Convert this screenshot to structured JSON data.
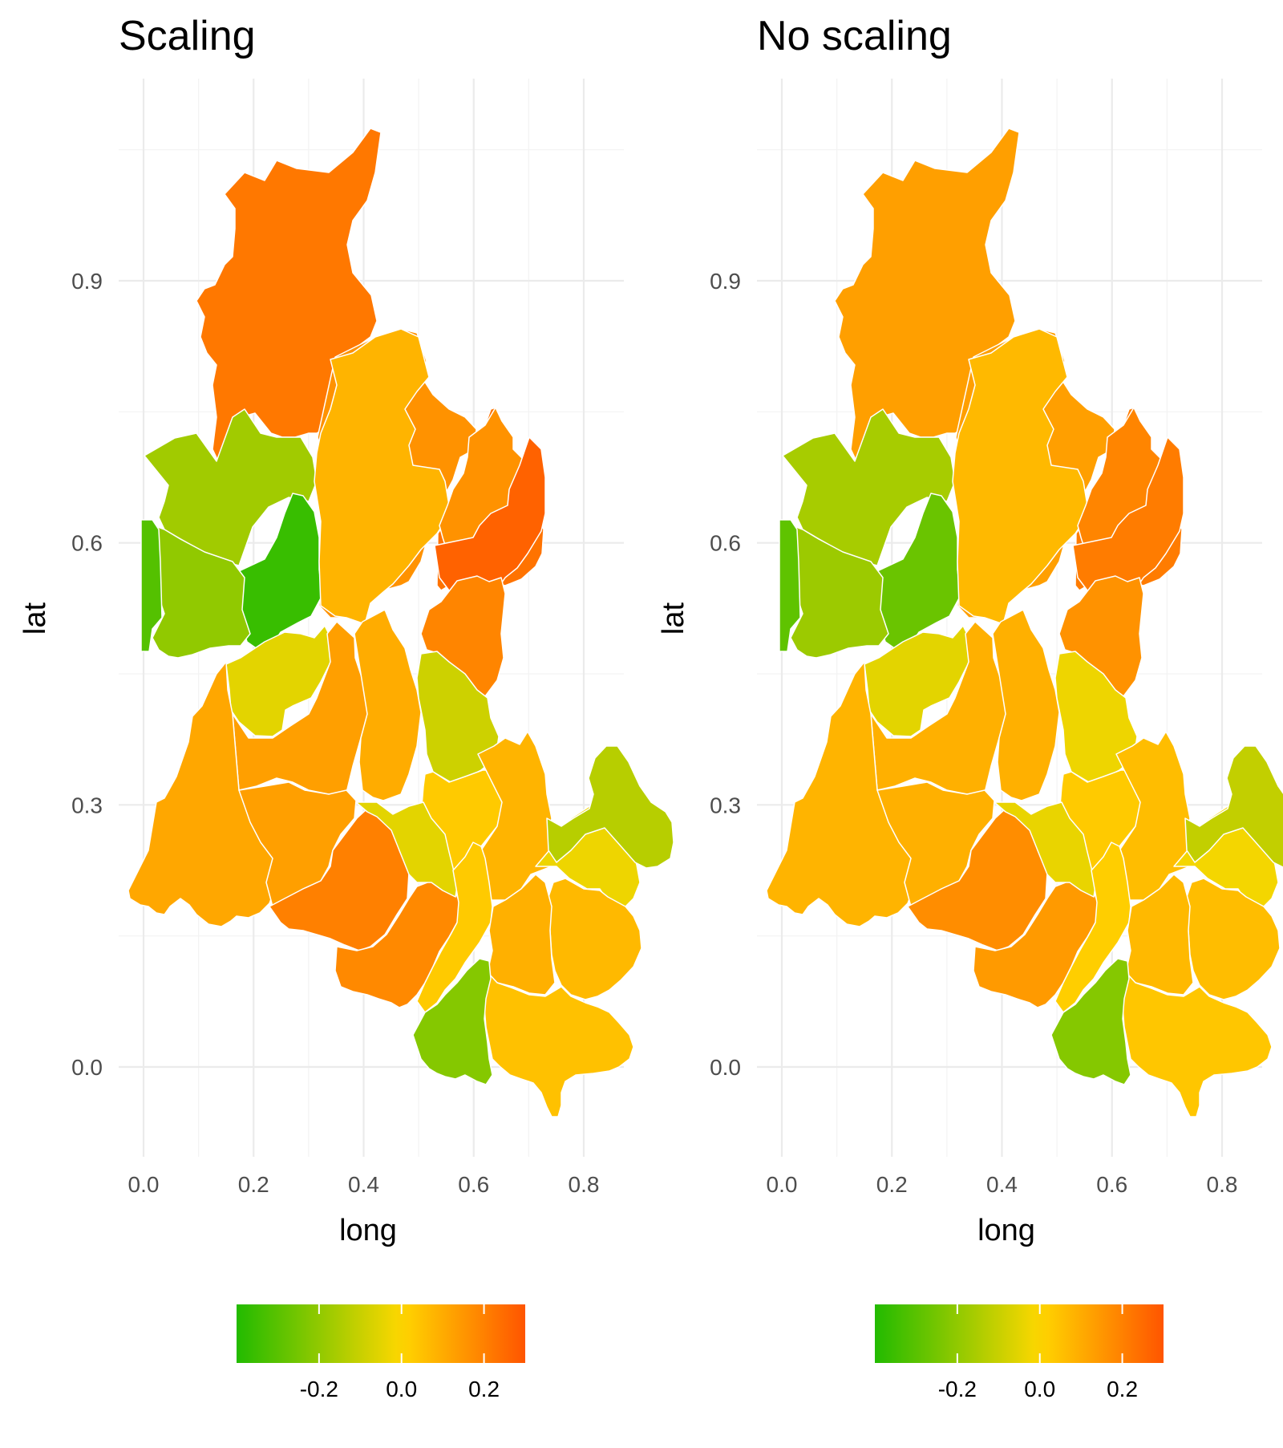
{
  "chart_data": [
    {
      "type": "heatmap",
      "title": "Scaling",
      "xlabel": "long",
      "ylabel": "lat",
      "xlim": [
        -0.02,
        0.87
      ],
      "ylim": [
        -0.105,
        1.15
      ],
      "x_ticks": [
        "0.0",
        "0.2",
        "0.4",
        "0.6",
        "0.8"
      ],
      "y_ticks": [
        "0.0",
        "0.3",
        "0.6",
        "0.9"
      ],
      "legend": {
        "position": "bottom",
        "range": [
          -0.4,
          0.3
        ],
        "ticks": [
          "-0.2",
          "0.0",
          "0.2"
        ],
        "colors": [
          "#22bb00",
          "#ffd700",
          "#ff5500"
        ]
      },
      "regions": [
        {
          "id": "r01",
          "value": 0.22
        },
        {
          "id": "r02",
          "value": 0.16
        },
        {
          "id": "r03",
          "value": -0.17
        },
        {
          "id": "r04",
          "value": -0.36
        },
        {
          "id": "r05",
          "value": -0.2
        },
        {
          "id": "r06",
          "value": -0.31
        },
        {
          "id": "r07",
          "value": 0.08
        },
        {
          "id": "r08",
          "value": 0.23
        },
        {
          "id": "r09",
          "value": 0.16
        },
        {
          "id": "r10",
          "value": 0.27
        },
        {
          "id": "r11",
          "value": 0.19
        },
        {
          "id": "r12",
          "value": -0.05
        },
        {
          "id": "r13",
          "value": 0.13
        },
        {
          "id": "r14",
          "value": 0.1
        },
        {
          "id": "r15",
          "value": -0.09
        },
        {
          "id": "r16",
          "value": 0.03
        },
        {
          "id": "r17",
          "value": 0.08
        },
        {
          "id": "r18",
          "value": -0.03
        },
        {
          "id": "r19",
          "value": 0.11
        },
        {
          "id": "r20",
          "value": 0.13
        },
        {
          "id": "r21",
          "value": 0.2
        },
        {
          "id": "r22",
          "value": 0.18
        },
        {
          "id": "r23",
          "value": -0.05
        },
        {
          "id": "r24",
          "value": 0.03
        },
        {
          "id": "r25",
          "value": -0.13
        },
        {
          "id": "r26",
          "value": 0.07
        },
        {
          "id": "r27",
          "value": 0.09
        },
        {
          "id": "r28",
          "value": 0.05
        },
        {
          "id": "r29",
          "value": -0.22
        }
      ]
    },
    {
      "type": "heatmap",
      "title": "No scaling",
      "xlabel": "long",
      "ylabel": "lat",
      "xlim": [
        -0.02,
        0.87
      ],
      "ylim": [
        -0.105,
        1.15
      ],
      "x_ticks": [
        "0.0",
        "0.2",
        "0.4",
        "0.6",
        "0.8"
      ],
      "y_ticks": [
        "0.0",
        "0.3",
        "0.6",
        "0.9"
      ],
      "legend": {
        "position": "bottom",
        "range": [
          -0.4,
          0.3
        ],
        "ticks": [
          "-0.2",
          "0.0",
          "0.2"
        ],
        "colors": [
          "#22bb00",
          "#ffd700",
          "#ff5500"
        ]
      },
      "regions": [
        {
          "id": "r01",
          "value": 0.13
        },
        {
          "id": "r02",
          "value": 0.13
        },
        {
          "id": "r03",
          "value": -0.16
        },
        {
          "id": "r04",
          "value": -0.27
        },
        {
          "id": "r05",
          "value": -0.18
        },
        {
          "id": "r06",
          "value": -0.29
        },
        {
          "id": "r07",
          "value": 0.07
        },
        {
          "id": "r08",
          "value": 0.21
        },
        {
          "id": "r09",
          "value": 0.19
        },
        {
          "id": "r10",
          "value": 0.21
        },
        {
          "id": "r11",
          "value": 0.16
        },
        {
          "id": "r12",
          "value": -0.05
        },
        {
          "id": "r13",
          "value": 0.09
        },
        {
          "id": "r14",
          "value": 0.09
        },
        {
          "id": "r15",
          "value": -0.03
        },
        {
          "id": "r16",
          "value": 0.03
        },
        {
          "id": "r17",
          "value": 0.06
        },
        {
          "id": "r18",
          "value": -0.02
        },
        {
          "id": "r19",
          "value": 0.08
        },
        {
          "id": "r20",
          "value": 0.09
        },
        {
          "id": "r21",
          "value": 0.17
        },
        {
          "id": "r22",
          "value": 0.14
        },
        {
          "id": "r23",
          "value": -0.04
        },
        {
          "id": "r24",
          "value": 0.02
        },
        {
          "id": "r25",
          "value": -0.11
        },
        {
          "id": "r26",
          "value": 0.06
        },
        {
          "id": "r27",
          "value": 0.07
        },
        {
          "id": "r28",
          "value": 0.04
        },
        {
          "id": "r29",
          "value": -0.22
        }
      ]
    }
  ]
}
